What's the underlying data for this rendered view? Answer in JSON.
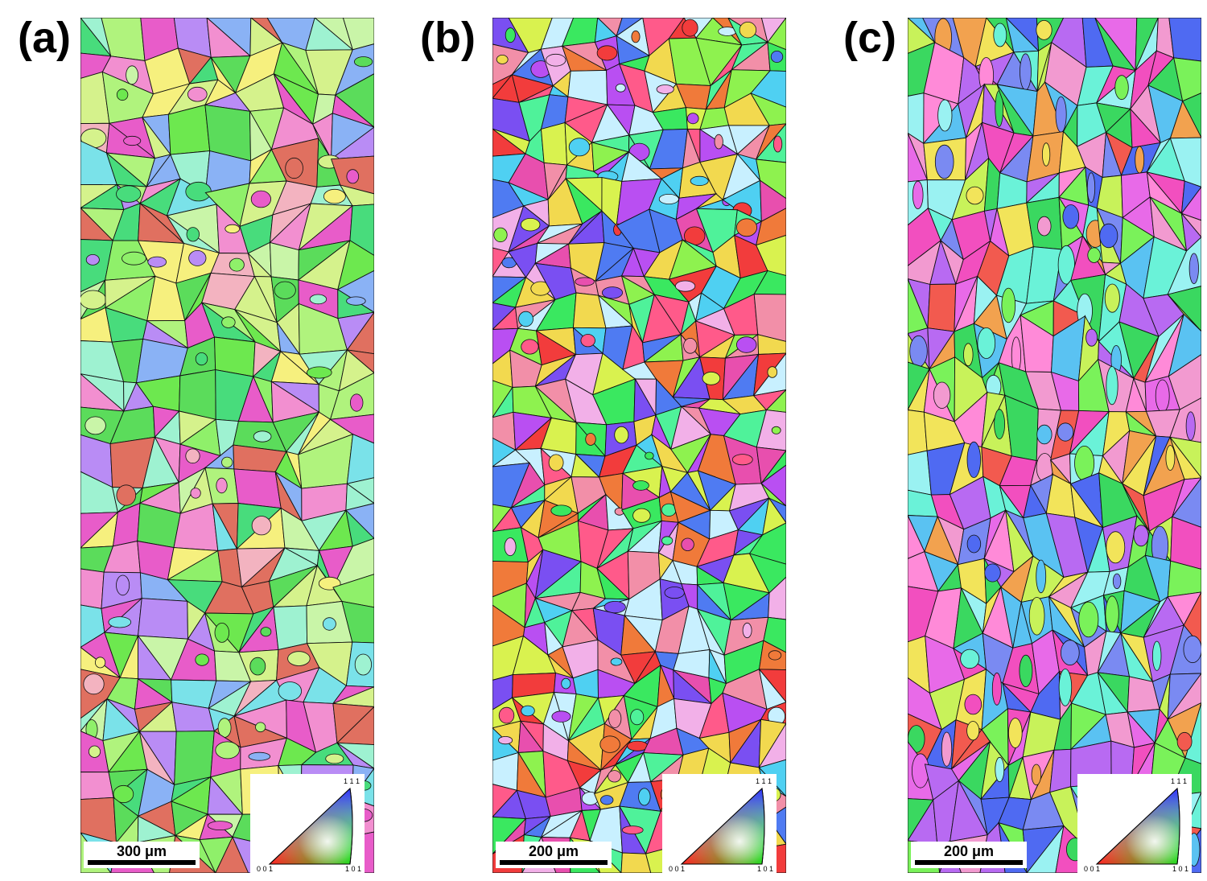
{
  "panels": [
    {
      "label": "(a)",
      "scale_bar": "300 μm",
      "ipf_legend": {
        "top": "1 1 1",
        "bottom_left": "0 0 1",
        "bottom_right": "1 0 1"
      },
      "palette": [
        "#6de84f",
        "#8ff06a",
        "#5bdc5b",
        "#b0f37d",
        "#d5f28c",
        "#f3b3c0",
        "#b98cf5",
        "#8ab2f5",
        "#e85cc9",
        "#f6f07e",
        "#9ef2d1",
        "#e07060",
        "#48dc7c",
        "#c9f5a8",
        "#7ae2e9",
        "#f28fd0"
      ]
    },
    {
      "label": "(b)",
      "scale_bar": "200 μm",
      "ipf_legend": {
        "top": "1 1 1",
        "bottom_left": "0 0 1",
        "bottom_right": "1 0 1"
      },
      "palette": [
        "#f23c3c",
        "#f07a3a",
        "#e84fae",
        "#b94ff2",
        "#7a4ff2",
        "#4f7bf2",
        "#4fd0f2",
        "#4ff29a",
        "#8ef24f",
        "#d9f24f",
        "#f2d94f",
        "#f28fa8",
        "#f2b0e8",
        "#c8f0ff",
        "#ff5a8a",
        "#3ae860"
      ]
    },
    {
      "label": "(c)",
      "scale_bar": "200 μm",
      "ipf_legend": {
        "top": "1 1 1",
        "bottom_left": "0 0 1",
        "bottom_right": "1 0 1"
      },
      "palette": [
        "#f24fbf",
        "#b86af2",
        "#7a8af2",
        "#5ac2f2",
        "#6af2d8",
        "#7af25a",
        "#c8f25a",
        "#f2e45a",
        "#f2a24f",
        "#f25a4f",
        "#e86ae8",
        "#4f6af2",
        "#f29ad0",
        "#9af2f2",
        "#3ad860",
        "#ff8ad8"
      ]
    }
  ]
}
